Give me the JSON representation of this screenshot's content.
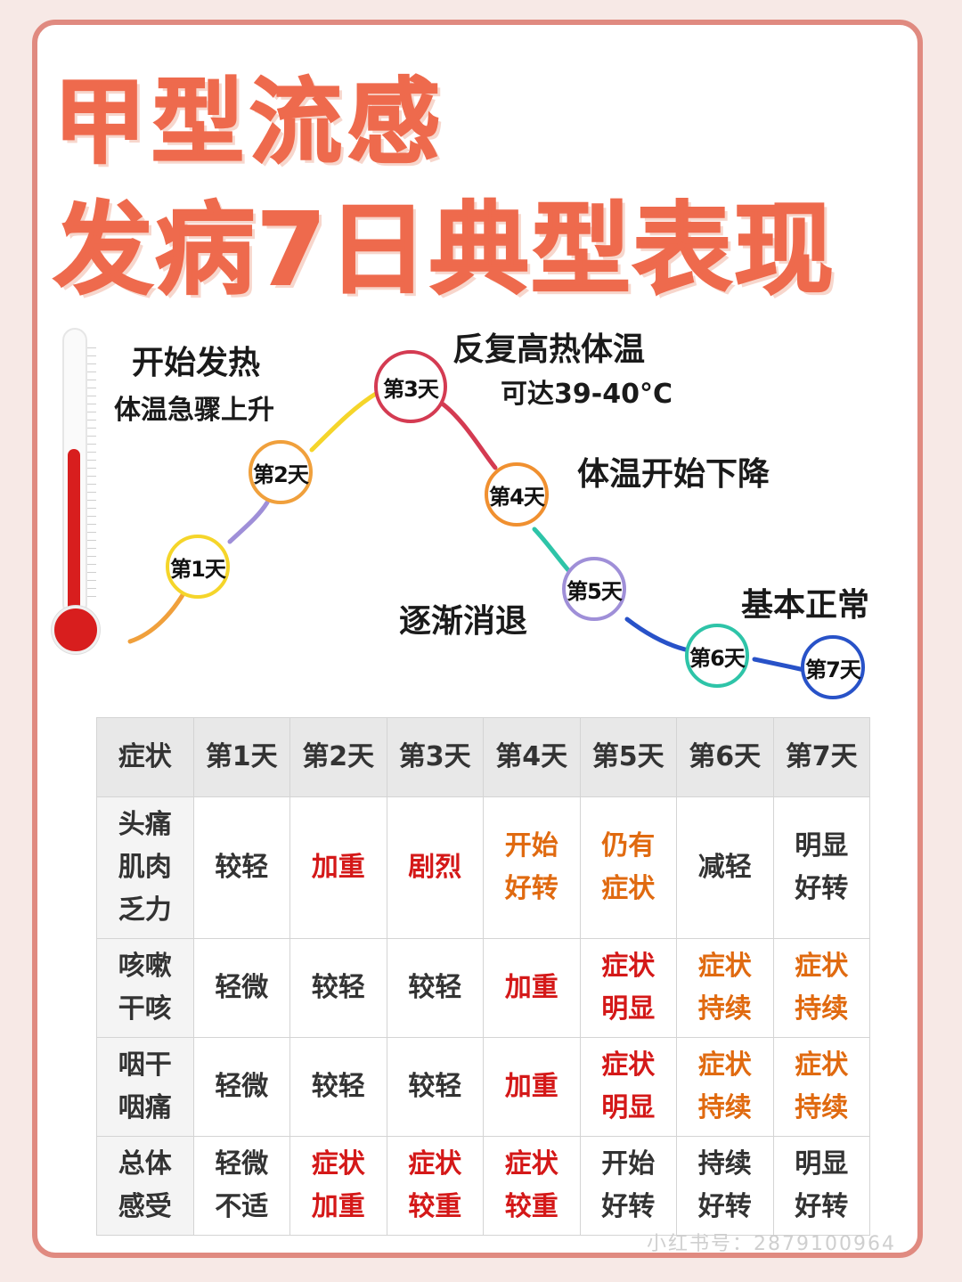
{
  "title": {
    "line1": "甲型流感",
    "line2": "发病7日典型表现"
  },
  "annotations": {
    "start_fever": "开始发热",
    "temp_rising": "体温急骤上升",
    "high_fever": "反复高热体温",
    "high_fever_value": "可达39-40°C",
    "temp_dropping": "体温开始下降",
    "fading": "逐渐消退",
    "normal": "基本正常"
  },
  "days": [
    {
      "label": "第1天",
      "color": "#f5d52a"
    },
    {
      "label": "第2天",
      "color": "#f0a03c"
    },
    {
      "label": "第3天",
      "color": "#d43b52"
    },
    {
      "label": "第4天",
      "color": "#f09030"
    },
    {
      "label": "第5天",
      "color": "#9f8fd8"
    },
    {
      "label": "第6天",
      "color": "#2ec4a8"
    },
    {
      "label": "第7天",
      "color": "#2852c8"
    }
  ],
  "table": {
    "headers": [
      "症状",
      "第1天",
      "第2天",
      "第3天",
      "第4天",
      "第5天",
      "第6天",
      "第7天"
    ],
    "rows": [
      {
        "symptom": "头痛\n肌肉\n乏力",
        "cells": [
          {
            "text": "较轻",
            "color": "black"
          },
          {
            "text": "加重",
            "color": "red"
          },
          {
            "text": "剧烈",
            "color": "red"
          },
          {
            "text": "开始\n好转",
            "color": "orange"
          },
          {
            "text": "仍有\n症状",
            "color": "orange"
          },
          {
            "text": "减轻",
            "color": "black"
          },
          {
            "text": "明显\n好转",
            "color": "black"
          }
        ]
      },
      {
        "symptom": "咳嗽\n干咳",
        "cells": [
          {
            "text": "轻微",
            "color": "black"
          },
          {
            "text": "较轻",
            "color": "black"
          },
          {
            "text": "较轻",
            "color": "black"
          },
          {
            "text": "加重",
            "color": "red"
          },
          {
            "text": "症状\n明显",
            "color": "red"
          },
          {
            "text": "症状\n持续",
            "color": "orange"
          },
          {
            "text": "症状\n持续",
            "color": "orange"
          }
        ]
      },
      {
        "symptom": "咽干\n咽痛",
        "cells": [
          {
            "text": "轻微",
            "color": "black"
          },
          {
            "text": "较轻",
            "color": "black"
          },
          {
            "text": "较轻",
            "color": "black"
          },
          {
            "text": "加重",
            "color": "red"
          },
          {
            "text": "症状\n明显",
            "color": "red"
          },
          {
            "text": "症状\n持续",
            "color": "orange"
          },
          {
            "text": "症状\n持续",
            "color": "orange"
          }
        ]
      },
      {
        "symptom": "总体\n感受",
        "cells": [
          {
            "text": "轻微\n不适",
            "color": "black"
          },
          {
            "text": "症状\n加重",
            "color": "red"
          },
          {
            "text": "症状\n较重",
            "color": "red"
          },
          {
            "text": "症状\n较重",
            "color": "red"
          },
          {
            "text": "开始\n好转",
            "color": "black"
          },
          {
            "text": "持续\n好转",
            "color": "black"
          },
          {
            "text": "明显\n好转",
            "color": "black"
          }
        ]
      }
    ]
  },
  "watermark": "小红书号：2879100964",
  "colors": {
    "title": "#ee6a4d",
    "frame": "#e08a80",
    "red": "#d41818",
    "orange": "#e06a10"
  }
}
